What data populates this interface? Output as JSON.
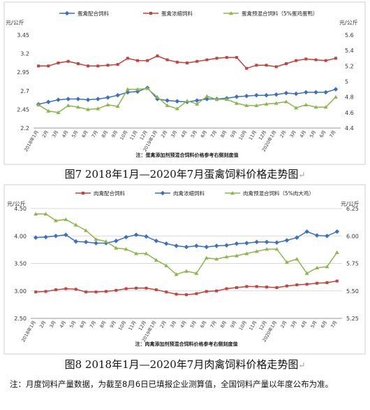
{
  "figure1": {
    "caption": "图7  2018年1月—2020年7月蛋禽饲料价格走势图",
    "caption_mark": "↵"
  },
  "figure2": {
    "caption": "图8  2018年1月—2020年7月肉禽饲料价格走势图",
    "caption_mark": "↵"
  },
  "footnote": "注：月度饲料产量数据，为截至8月6日已填报企业测算值，全国饲料产量以年度公布为准。",
  "colors": {
    "blue": "#3b6fc4",
    "red": "#c8403b",
    "green": "#8cb84a",
    "grid": "#d9d9d9",
    "panel_border": "#cfcfcf"
  },
  "chart_data": [
    {
      "type": "line",
      "title": "",
      "left_axis_unit": "元/公斤",
      "right_axis_unit": "元/公斤",
      "left_ylim": [
        2.2,
        3.45
      ],
      "left_ticks": [
        "2.2",
        "2.45",
        "2.7",
        "2.95",
        "3.2",
        "3.45"
      ],
      "right_ylim": [
        4.4,
        5.6
      ],
      "right_ticks": [
        "4.4",
        "4.6",
        "4.8",
        "5",
        "5.2",
        "5.4",
        "5.6"
      ],
      "grid": false,
      "legend_position": "top",
      "categories": [
        "2018年1月",
        "2月",
        "3月",
        "4月",
        "5月",
        "6月",
        "7月",
        "8月",
        "9月",
        "10月",
        "11月",
        "12月",
        "2019年1月",
        "2月",
        "3月",
        "4月",
        "5月",
        "6月",
        "7月",
        "8月",
        "9月",
        "10月",
        "11月",
        "12月",
        "2020年1月",
        "2月",
        "3月",
        "4月",
        "5月",
        "6月",
        "7月"
      ],
      "series": [
        {
          "name": "蛋禽配合饲料",
          "axis": "left",
          "color": "blue",
          "values": [
            2.52,
            2.55,
            2.58,
            2.59,
            2.59,
            2.58,
            2.59,
            2.61,
            2.64,
            2.68,
            2.69,
            2.74,
            2.59,
            2.57,
            2.56,
            2.55,
            2.57,
            2.59,
            2.59,
            2.6,
            2.62,
            2.63,
            2.64,
            2.64,
            2.65,
            2.67,
            2.66,
            2.68,
            2.68,
            2.68,
            2.72
          ]
        },
        {
          "name": "蛋禽浓缩饲料",
          "axis": "right",
          "color": "red",
          "values": [
            5.2,
            5.2,
            5.24,
            5.26,
            5.23,
            5.2,
            5.2,
            5.21,
            5.22,
            5.3,
            5.27,
            5.27,
            5.33,
            5.28,
            5.25,
            5.24,
            5.26,
            5.28,
            5.3,
            5.31,
            5.31,
            5.17,
            5.21,
            5.21,
            5.19,
            5.23,
            5.27,
            5.29,
            5.28,
            5.27,
            5.3
          ]
        },
        {
          "name": "蛋禽预混合饲料（5%蛋鸡蛋鸭）",
          "axis": "right",
          "color": "green",
          "values": [
            4.7,
            4.62,
            4.6,
            4.69,
            4.67,
            4.64,
            4.65,
            4.7,
            4.68,
            4.9,
            4.9,
            4.91,
            4.8,
            4.69,
            4.65,
            4.75,
            4.71,
            4.81,
            4.77,
            4.77,
            4.72,
            4.69,
            4.69,
            4.71,
            4.72,
            4.74,
            4.66,
            4.7,
            4.67,
            4.67,
            4.8
          ]
        }
      ],
      "annotation": "注：蛋禽添加剂预混合饲料价格参考右侧刻度值"
    },
    {
      "type": "line",
      "title": "",
      "left_axis_unit": "元/公斤",
      "right_axis_unit": "元/公斤",
      "left_ylim": [
        2.5,
        4.5
      ],
      "left_ticks": [
        "2.50",
        "3.00",
        "3.50",
        "4.00",
        "4.50"
      ],
      "right_ylim": [
        5.25,
        6.25
      ],
      "right_ticks": [
        "5.25",
        "5.50",
        "5.75",
        "6.00",
        "6.25"
      ],
      "grid": true,
      "legend_position": "top",
      "categories": [
        "2018年1月",
        "2月",
        "3月",
        "4月",
        "5月",
        "6月",
        "7月",
        "8月",
        "9月",
        "10月",
        "11月",
        "12月",
        "2019年1月",
        "2月",
        "3月",
        "4月",
        "5月",
        "6月",
        "7月",
        "8月",
        "9月",
        "10月",
        "11月",
        "12月",
        "2020年1月",
        "2月",
        "3月",
        "4月",
        "5月",
        "6月",
        "7月"
      ],
      "series": [
        {
          "name": "肉禽配合饲料",
          "axis": "left",
          "color": "red",
          "values": [
            2.98,
            2.99,
            3.02,
            3.04,
            3.03,
            2.98,
            2.98,
            2.99,
            3.01,
            3.04,
            3.05,
            3.05,
            3.02,
            2.98,
            2.94,
            2.93,
            2.95,
            2.99,
            3.0,
            3.04,
            3.06,
            3.08,
            3.08,
            3.07,
            3.06,
            3.09,
            3.11,
            3.12,
            3.14,
            3.15,
            3.18
          ]
        },
        {
          "name": "肉禽浓缩饲料",
          "axis": "left",
          "color": "blue",
          "values": [
            3.97,
            3.98,
            4.0,
            4.02,
            3.9,
            3.89,
            3.87,
            3.87,
            3.91,
            3.98,
            4.02,
            3.99,
            3.91,
            3.86,
            3.82,
            3.8,
            3.82,
            3.8,
            3.82,
            3.83,
            3.86,
            3.87,
            3.89,
            3.89,
            3.88,
            3.92,
            3.97,
            4.08,
            4.01,
            4.0,
            4.08
          ]
        },
        {
          "name": "肉禽预混合饲料（5%肉大鸡）",
          "axis": "right",
          "color": "green",
          "values": [
            6.2,
            6.2,
            6.14,
            6.15,
            6.1,
            6.05,
            5.97,
            5.95,
            5.89,
            5.88,
            5.84,
            5.84,
            5.78,
            5.73,
            5.65,
            5.68,
            5.66,
            5.8,
            5.79,
            5.81,
            5.82,
            5.84,
            5.86,
            5.88,
            5.88,
            5.76,
            5.79,
            5.66,
            5.71,
            5.72,
            5.85
          ]
        }
      ],
      "annotation": "注：肉禽添加剂预混合饲料价格参考右侧刻度值"
    }
  ]
}
